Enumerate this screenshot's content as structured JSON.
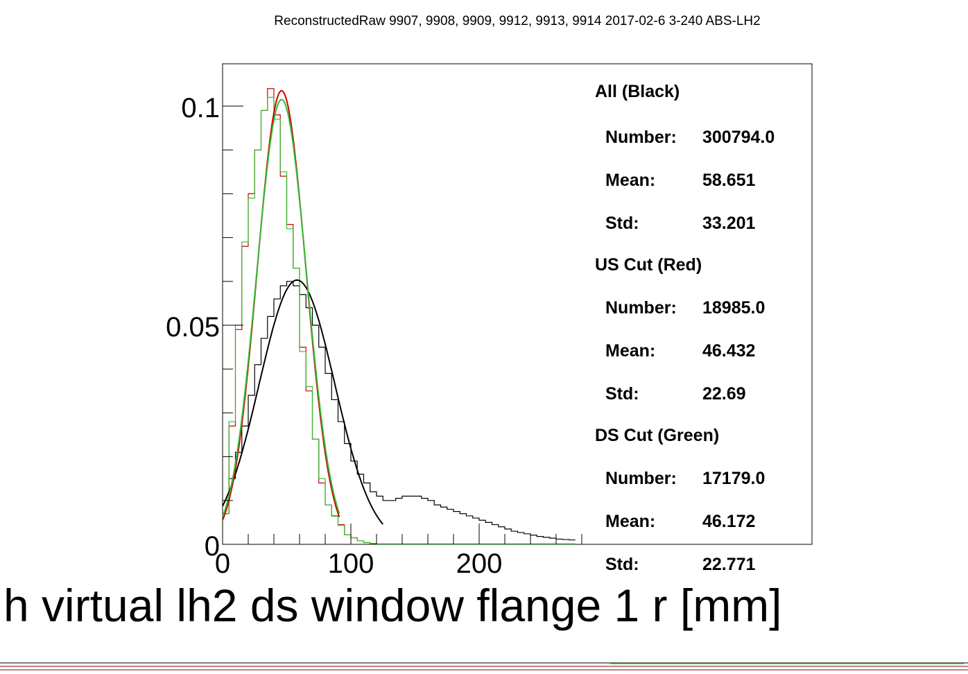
{
  "title": "ReconstructedRaw 9907, 9908, 9909, 9912, 9913, 9914 2017-02-6 3-240 ABS-LH2",
  "stats": [
    {
      "header": "All (Black)",
      "rows": [
        {
          "label": "Number:",
          "value": "300794.0"
        },
        {
          "label": "Mean:",
          "value": "58.651"
        },
        {
          "label": "Std:",
          "value": "33.201"
        }
      ]
    },
    {
      "header": "US Cut (Red)",
      "rows": [
        {
          "label": "Number:",
          "value": "18985.0"
        },
        {
          "label": "Mean:",
          "value": "46.432"
        },
        {
          "label": "Std:",
          "value": "22.69"
        }
      ]
    },
    {
      "header": "DS Cut (Green)",
      "rows": [
        {
          "label": "Number:",
          "value": "17179.0"
        },
        {
          "label": "Mean:",
          "value": "46.172"
        },
        {
          "label": "Std:",
          "value": "22.771"
        }
      ]
    }
  ],
  "chart_data": {
    "type": "line",
    "title": "ReconstructedRaw 9907, 9908, 9909, 9912, 9913, 9914 2017-02-6 3-240 ABS-LH2",
    "xlabel": "h virtual lh2 ds window flange 1 r [mm]",
    "ylabel": "",
    "xlim": [
      0,
      276
    ],
    "ylim": [
      0,
      0.1
    ],
    "x_ticks": [
      0,
      100,
      200
    ],
    "y_ticks": [
      0,
      0.05,
      0.1
    ],
    "x_tick_labels": [
      "0",
      "100",
      "200"
    ],
    "y_tick_labels": [
      "0",
      "0.05",
      "0.1"
    ],
    "bin_width": 5,
    "colors": {
      "all": "#000000",
      "us": "#cc0000",
      "ds": "#33bb33"
    },
    "series": [
      {
        "key": "all",
        "type": "histogram",
        "values": [
          0.007,
          0.015,
          0.021,
          0.027,
          0.034,
          0.041,
          0.047,
          0.052,
          0.056,
          0.059,
          0.06,
          0.059,
          0.057,
          0.054,
          0.05,
          0.045,
          0.039,
          0.033,
          0.028,
          0.023,
          0.019,
          0.016,
          0.014,
          0.012,
          0.011,
          0.01,
          0.01,
          0.0105,
          0.011,
          0.011,
          0.011,
          0.0105,
          0.01,
          0.009,
          0.0085,
          0.008,
          0.0075,
          0.007,
          0.0065,
          0.006,
          0.0055,
          0.005,
          0.0045,
          0.004,
          0.0035,
          0.003,
          0.0027,
          0.0024,
          0.0021,
          0.0018,
          0.0016,
          0.0014,
          0.0012,
          0.0011,
          0.001
        ]
      },
      {
        "key": "us",
        "type": "histogram",
        "values": [
          0.007,
          0.027,
          0.049,
          0.068,
          0.08,
          0.09,
          0.099,
          0.104,
          0.098,
          0.084,
          0.073,
          0.063,
          0.045,
          0.035,
          0.024,
          0.014,
          0.009,
          0.0065,
          0.0045,
          0.0022,
          0.0015,
          0.0008,
          0.0004,
          0.0002,
          0.0001,
          0.0001,
          0.0001,
          0.0001,
          0.0001,
          0.0001,
          0.0001,
          0.0001,
          0.0001,
          0.0001,
          0.0001,
          0.0001,
          0.0001,
          0.0001,
          0.0001,
          0.0001,
          0.0001,
          0.0001,
          0.0001,
          0.0001,
          0.0001,
          0.0001,
          0.0001,
          0.0001,
          0.0001,
          0.0001,
          0.0001,
          0.0001,
          0.0001,
          0.0001,
          0.0001
        ]
      },
      {
        "key": "ds",
        "type": "histogram",
        "values": [
          0.007,
          0.028,
          0.05,
          0.069,
          0.079,
          0.09,
          0.099,
          0.102,
          0.097,
          0.085,
          0.072,
          0.063,
          0.044,
          0.036,
          0.024,
          0.015,
          0.009,
          0.0064,
          0.0043,
          0.0022,
          0.0015,
          0.0008,
          0.0004,
          0.0002,
          0.0001,
          0.0001,
          0.0001,
          0.0001,
          0.0001,
          0.0001,
          0.0001,
          0.0001,
          0.0001,
          0.0001,
          0.0001,
          0.0001,
          0.0001,
          0.0001,
          0.0001,
          0.0001,
          0.0001,
          0.0001,
          0.0001,
          0.0001,
          0.0001,
          0.0001,
          0.0001,
          0.0001,
          0.0001,
          0.0001,
          0.0001,
          0.0001,
          0.0001,
          0.0001,
          0.0001
        ]
      },
      {
        "key": "all_fit",
        "type": "gaussian",
        "color_key": "all",
        "amplitude": 0.0603,
        "mean": 58,
        "sigma": 29.5,
        "xrange": [
          0,
          125
        ]
      },
      {
        "key": "us_fit",
        "type": "gaussian",
        "color_key": "us",
        "amplitude": 0.1035,
        "mean": 46,
        "sigma": 19,
        "xrange": [
          0,
          91
        ]
      },
      {
        "key": "ds_fit",
        "type": "gaussian",
        "color_key": "ds",
        "amplitude": 0.1015,
        "mean": 46,
        "sigma": 19.5,
        "xrange": [
          0,
          91
        ]
      }
    ]
  }
}
